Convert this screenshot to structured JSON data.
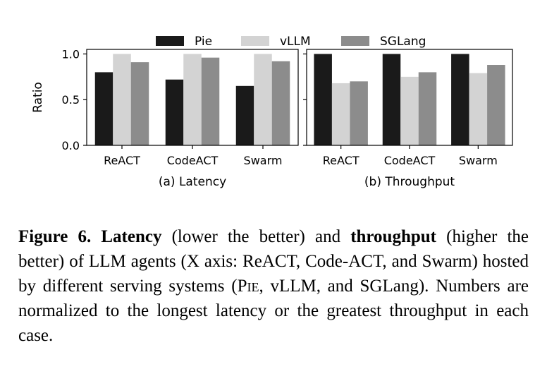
{
  "chart_data": [
    {
      "type": "bar",
      "caption": "(a) Latency",
      "categories": [
        "ReACT",
        "CodeACT",
        "Swarm"
      ],
      "series": [
        {
          "name": "Pie",
          "values": [
            0.8,
            0.72,
            0.65
          ],
          "color": "#1a1a1a"
        },
        {
          "name": "vLLM",
          "values": [
            1.0,
            1.0,
            1.0
          ],
          "color": "#d3d3d3"
        },
        {
          "name": "SGLang",
          "values": [
            0.91,
            0.96,
            0.92
          ],
          "color": "#8c8c8c"
        }
      ],
      "ylabel": "Ratio",
      "yticks": [
        "0.0",
        "0.5",
        "1.0"
      ],
      "ylim": [
        0,
        1.05
      ],
      "grid": false,
      "legend": "top-center"
    },
    {
      "type": "bar",
      "caption": "(b) Throughput",
      "categories": [
        "ReACT",
        "CodeACT",
        "Swarm"
      ],
      "series": [
        {
          "name": "Pie",
          "values": [
            1.0,
            1.0,
            1.0
          ],
          "color": "#1a1a1a"
        },
        {
          "name": "vLLM",
          "values": [
            0.68,
            0.75,
            0.79
          ],
          "color": "#d3d3d3"
        },
        {
          "name": "SGLang",
          "values": [
            0.7,
            0.8,
            0.88
          ],
          "color": "#8c8c8c"
        }
      ],
      "ylim": [
        0,
        1.05
      ],
      "grid": false
    }
  ],
  "caption": {
    "label": "Figure 6.",
    "bold1": "Latency",
    "text1": " (lower the better) and ",
    "bold2": "throughput",
    "text2": " (higher the better) of LLM agents (X axis: ReACT, Code-ACT, and Swarm) hosted by different serving systems (",
    "pie": "Pie",
    "text3": ", vLLM, and SGLang). Numbers are normalized to the longest latency or the greatest throughput in each case."
  }
}
